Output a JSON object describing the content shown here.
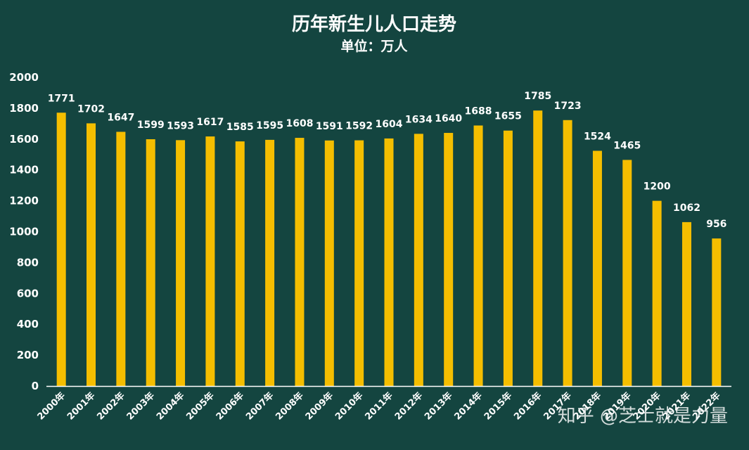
{
  "chart_data": {
    "type": "bar",
    "title": "历年新生儿人口走势",
    "subtitle": "单位：万人",
    "xlabel": "",
    "ylabel": "",
    "ylim": [
      0,
      2000
    ],
    "yticks": [
      0,
      200,
      400,
      600,
      800,
      1000,
      1200,
      1400,
      1600,
      1800,
      2000
    ],
    "grid": false,
    "legend": "none",
    "categories": [
      "2000年",
      "2001年",
      "2002年",
      "2003年",
      "2004年",
      "2005年",
      "2006年",
      "2007年",
      "2008年",
      "2009年",
      "2010年",
      "2011年",
      "2012年",
      "2013年",
      "2014年",
      "2015年",
      "2016年",
      "2017年",
      "2018年",
      "2019年",
      "2020年",
      "2021年",
      "2022年"
    ],
    "values": [
      1771,
      1702,
      1647,
      1599,
      1593,
      1617,
      1585,
      1595,
      1608,
      1591,
      1592,
      1604,
      1634,
      1640,
      1688,
      1655,
      1785,
      1723,
      1524,
      1465,
      1200,
      1062,
      956
    ],
    "colors": {
      "background": "#144540",
      "bar": "#F5BE00",
      "text": "#ffffff",
      "axis": "#ffffff"
    }
  },
  "watermark": "知乎 @芝士就是力量"
}
